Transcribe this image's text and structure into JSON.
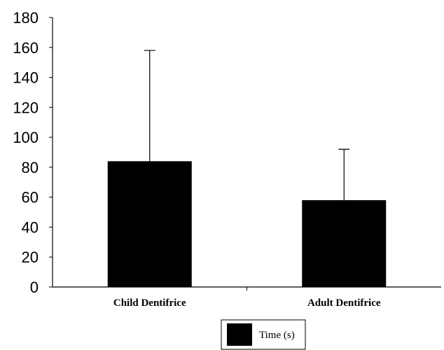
{
  "chart_data": {
    "type": "bar",
    "categories": [
      "Child Dentifrice",
      "Adult Dentifrice"
    ],
    "series": [
      {
        "name": "Time (s)",
        "values": [
          84,
          58
        ],
        "error_upper": [
          158,
          92
        ]
      }
    ],
    "ylim": [
      0,
      180
    ],
    "yticks": [
      "0",
      "20",
      "40",
      "60",
      "80",
      "100",
      "120",
      "140",
      "160",
      "180"
    ],
    "grid": false,
    "legend_position": "bottom-center",
    "bar_color": "#000000"
  }
}
